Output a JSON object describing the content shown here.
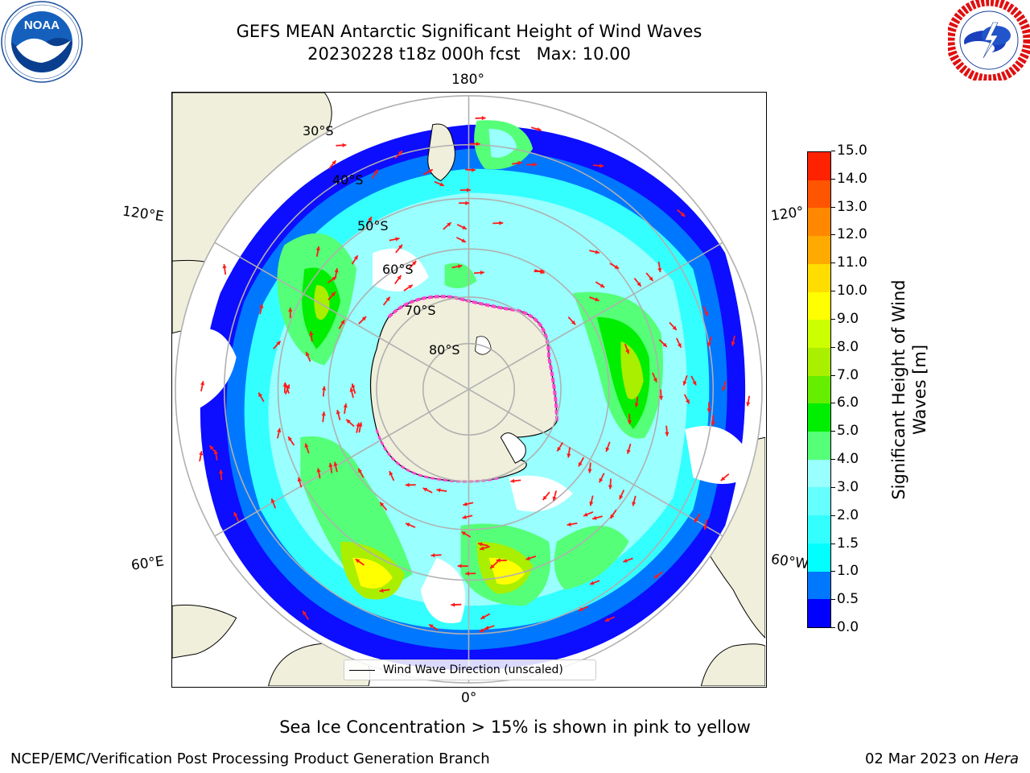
{
  "title": {
    "line1": "GEFS MEAN Antarctic Significant Height of Wind Waves",
    "line2": "20230228 t18z 000h fcst   Max: 10.00"
  },
  "logos": {
    "noaa": {
      "icon": "noaa-logo",
      "text": "NOAA",
      "ring_text": "NATIONAL OCEANIC AND ATMOSPHERIC ADMINISTRATION · U.S. DEPARTMENT OF COMMERCE"
    },
    "nws": {
      "icon": "nws-logo",
      "ring_text": "NATIONAL WEATHER SERVICE"
    }
  },
  "map": {
    "projection": "south-polar-stereographic",
    "longitude_labels": {
      "top": "180°",
      "bottom": "0°",
      "left_upper": "120°E",
      "left_lower": "60°E",
      "right_upper": "120°",
      "right_lower": "60°W"
    },
    "latitude_labels": [
      "30°S",
      "40°S",
      "50°S",
      "60°S",
      "70°S",
      "80°S"
    ],
    "colors": {
      "land": "#efefdb",
      "ocean_no_data": "#ffffff",
      "grid": "#b0b0b0",
      "arrow": "#ff1a1a",
      "sea_ice": "#ff44cc"
    },
    "legend": {
      "label": "Wind Wave Direction (unscaled)"
    }
  },
  "colorbar": {
    "label": "Significant Height of Wind Waves [m]",
    "label_line1": "Significant Height of Wind",
    "label_line2": "Waves [m]",
    "ticks": [
      "0.0",
      "0.5",
      "1.0",
      "1.5",
      "2.0",
      "3.0",
      "4.0",
      "5.0",
      "6.0",
      "7.0",
      "8.0",
      "9.0",
      "10.0",
      "11.0",
      "12.0",
      "13.0",
      "14.0",
      "15.0"
    ],
    "colors": [
      "#0000ff",
      "#0077ff",
      "#00ffff",
      "#33ffff",
      "#66ffff",
      "#99ffff",
      "#55ff77",
      "#00ee00",
      "#66ee00",
      "#aaee00",
      "#ccff00",
      "#ffff00",
      "#ffdd00",
      "#ffaa00",
      "#ff8800",
      "#ff5500",
      "#ff2200"
    ]
  },
  "caption": "Sea Ice Concentration > 15% is shown in pink to yellow",
  "footer": {
    "left": "NCEP/EMC/Verification Post Processing Product Generation Branch",
    "right_date": "02 Mar 2023 on ",
    "right_host": "Hera"
  }
}
